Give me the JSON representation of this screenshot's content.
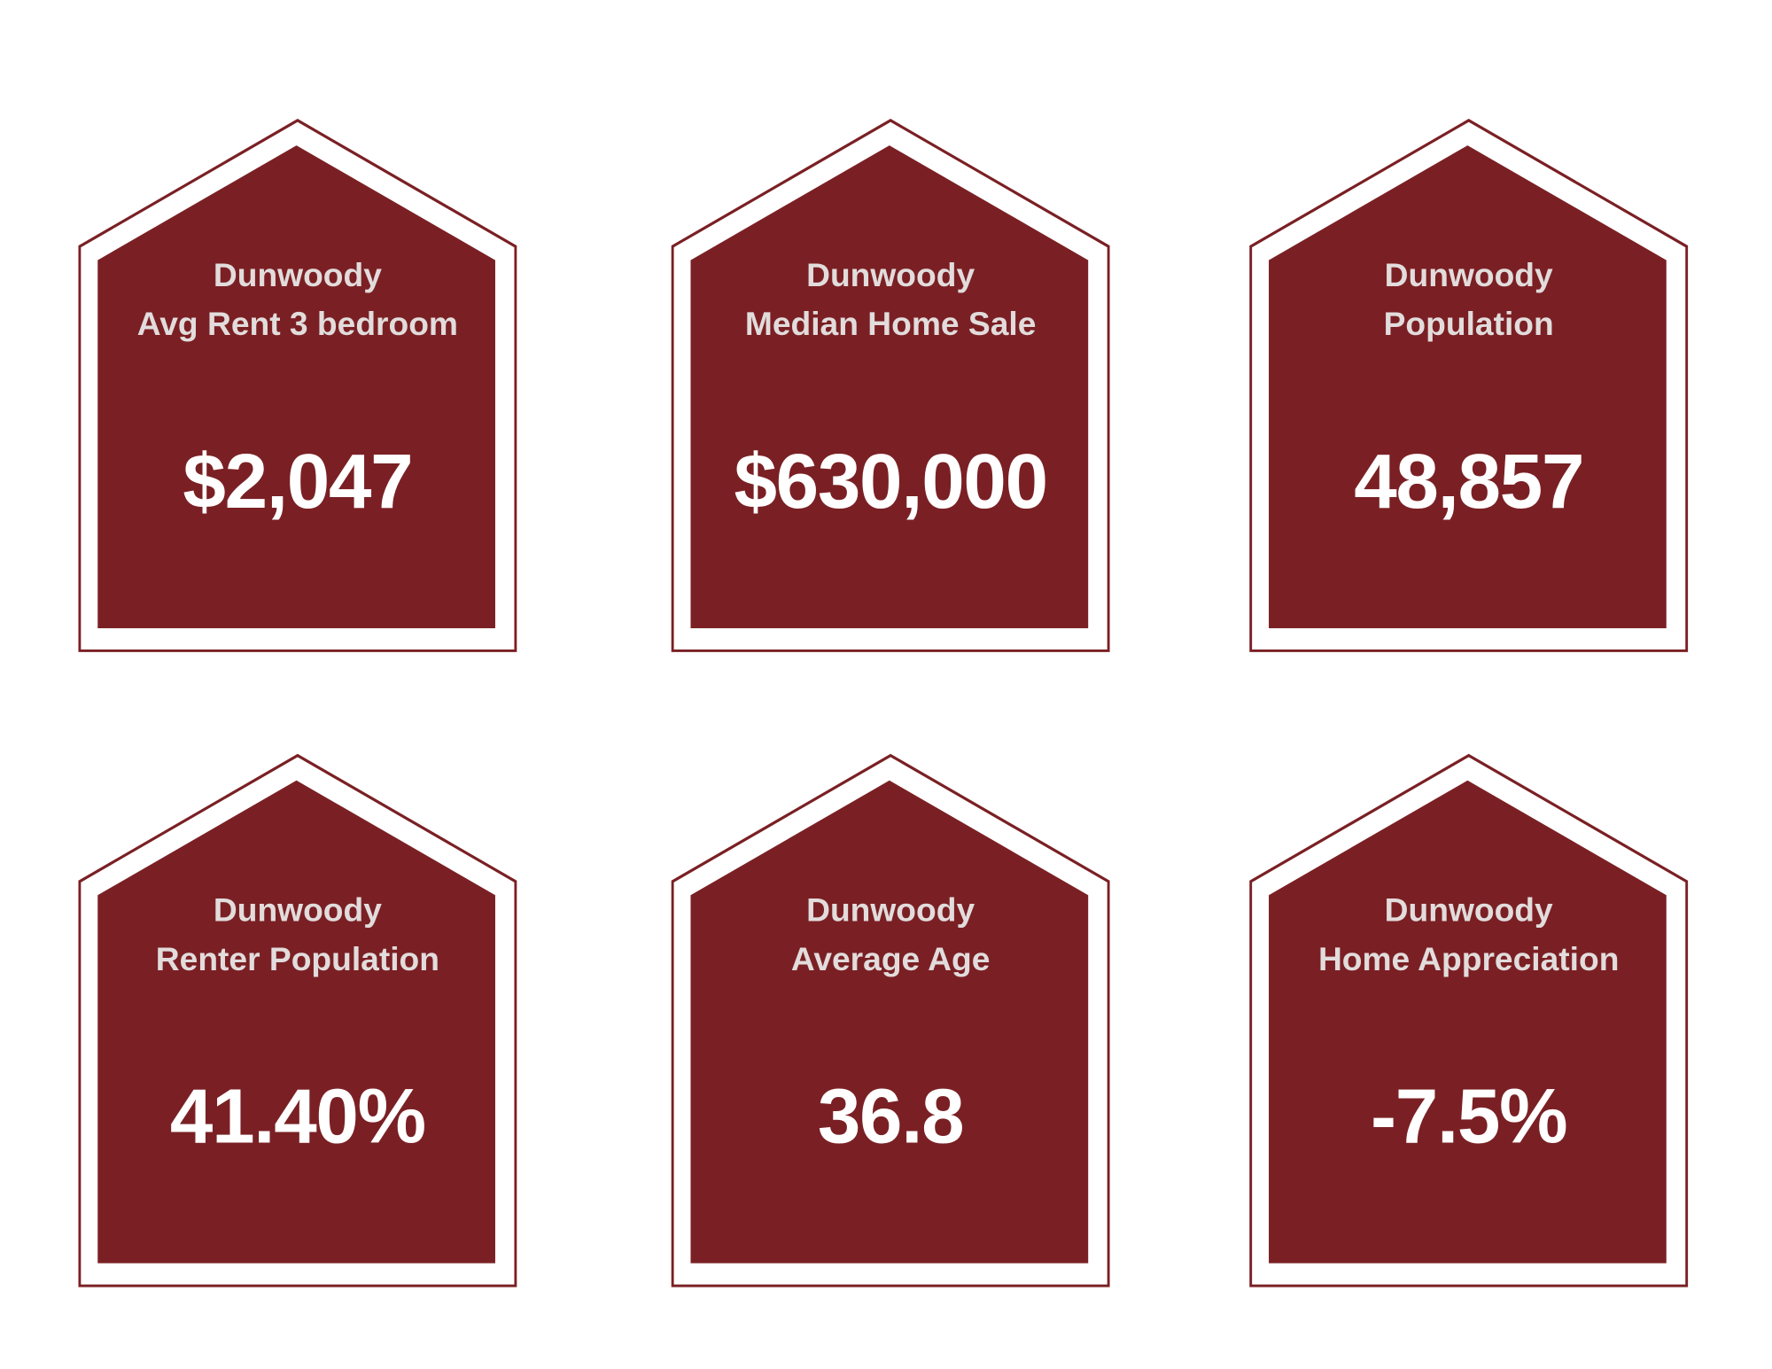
{
  "colors": {
    "fill": "#7a2024",
    "title_text": "#e2dcdc",
    "value_text": "#ffffff",
    "background": "#ffffff"
  },
  "cards": [
    {
      "city": "Dunwoody",
      "label": "Avg Rent 3 bedroom",
      "value": "$2,047"
    },
    {
      "city": "Dunwoody",
      "label": "Median Home Sale",
      "value": "$630,000"
    },
    {
      "city": "Dunwoody",
      "label": "Population",
      "value": "48,857"
    },
    {
      "city": "Dunwoody",
      "label": "Renter Population",
      "value": "41.40%"
    },
    {
      "city": "Dunwoody",
      "label": "Average Age",
      "value": "36.8"
    },
    {
      "city": "Dunwoody",
      "label": "Home Appreciation",
      "value": "-7.5%"
    }
  ]
}
